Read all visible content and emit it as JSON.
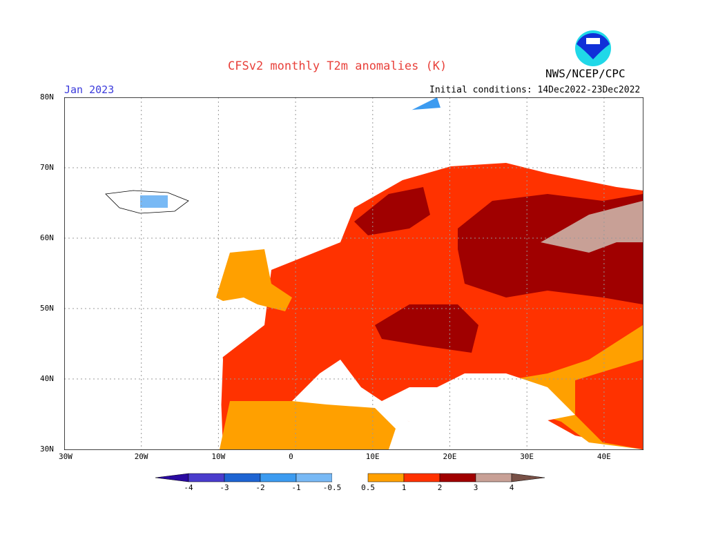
{
  "title": "CFSv2 monthly T2m anomalies (K)",
  "agency": "NWS/NCEP/CPC",
  "logo_text": "NOAA",
  "valid_month": "Jan 2023",
  "initial_conditions": "Initial conditions: 14Dec2022-23Dec2022",
  "map": {
    "region": "Europe",
    "lon_range": [
      "30W",
      "45E"
    ],
    "lat_range": [
      "30N",
      "80N"
    ],
    "lat_labels": [
      "80N",
      "70N",
      "60N",
      "50N",
      "40N",
      "30N"
    ],
    "lon_labels": [
      "30W",
      "20W",
      "10W",
      "0",
      "10E",
      "20E",
      "30E",
      "40E"
    ],
    "grid": "dotted"
  },
  "colorbar": {
    "tick_labels": [
      "-4",
      "-3",
      "-2",
      "-1",
      "-0.5",
      "0.5",
      "1",
      "2",
      "3",
      "4"
    ],
    "colors": {
      "below_-4": "#2a0aa0",
      "-4_-3": "#4a3ccc",
      "-3_-2": "#1e64d2",
      "-2_-1": "#3c9bf0",
      "-1_-0.5": "#78b9f5",
      "-0.5_0.5": "#ffffff",
      "0.5_1": "#ffa000",
      "1_2": "#ff3200",
      "2_3": "#a00000",
      "3_4": "#c8a096",
      "above_4": "#785046"
    }
  }
}
